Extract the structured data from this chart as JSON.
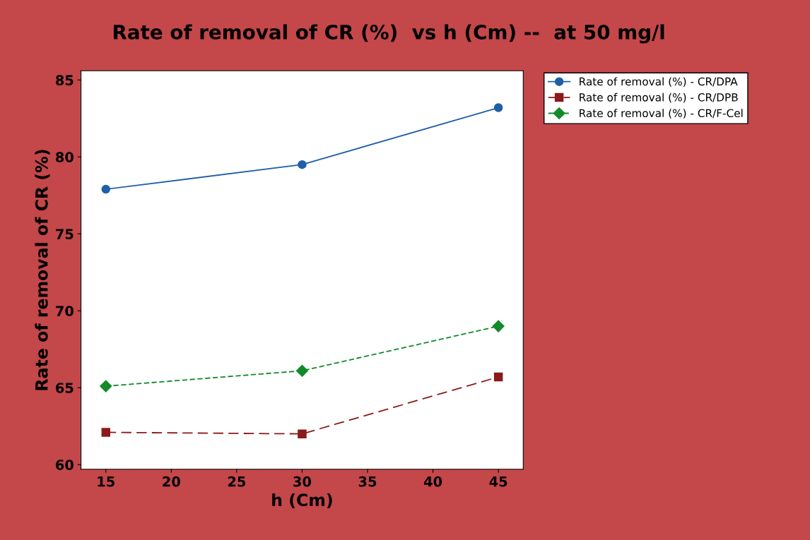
{
  "chart_data": {
    "type": "line",
    "title": "Rate of removal of CR (%)  vs h (Cm) --  at 50 mg/l",
    "xlabel": "h (Cm)",
    "ylabel": "Rate of removal of CR (%)",
    "x": [
      15,
      30,
      45
    ],
    "series": [
      {
        "name": "Rate of removal (%) - CR/DPA",
        "color": "#1f5fa8",
        "values": [
          77.9,
          79.5,
          83.2
        ],
        "marker": "circle",
        "line_style": "solid"
      },
      {
        "name": "Rate of removal (%) - CR/DPB",
        "color": "#8b1a1a",
        "values": [
          62.1,
          62.0,
          65.7
        ],
        "marker": "square",
        "line_style": "dashed"
      },
      {
        "name": "Rate of removal (%) - CR/F-Cel",
        "color": "#138a2a",
        "values": [
          65.1,
          66.1,
          69.0
        ],
        "marker": "diamond",
        "line_style": "dotted"
      }
    ],
    "xlim": [
      13.1,
      46.9
    ],
    "xticks": [
      15,
      20,
      25,
      30,
      35,
      40,
      45
    ],
    "ylim": [
      59.7,
      85.6
    ],
    "yticks": [
      60,
      65,
      70,
      75,
      80,
      85
    ],
    "grid": false,
    "legend": "top right"
  }
}
